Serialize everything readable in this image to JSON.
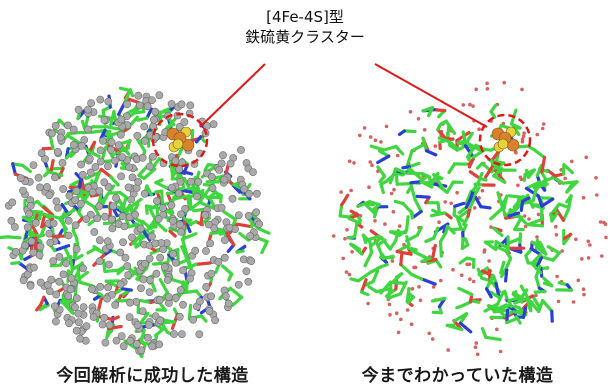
{
  "annotation": {
    "line1": "[4Fe-4S]型",
    "line2": "鉄硫黄クラスター"
  },
  "panels": {
    "left": {
      "caption": "今回解析に成功した構造"
    },
    "right": {
      "caption": "今まで​わかっていた構造"
    }
  },
  "colors": {
    "carbon": "#3fd63f",
    "nitrogen": "#2a3fd6",
    "oxygen": "#e0403a",
    "sulfur": "#e8d23a",
    "iron": "#d9822b",
    "hydrogen": "#a9a9a9",
    "water": "#d96060",
    "highlight": "#e01818"
  }
}
